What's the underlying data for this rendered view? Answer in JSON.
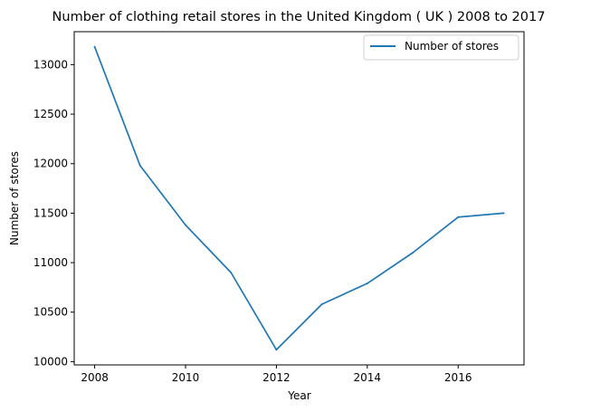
{
  "chart_data": {
    "type": "line",
    "title": "Number of clothing retail stores in the United Kingdom ( UK ) 2008 to 2017",
    "xlabel": "Year",
    "ylabel": "Number of stores",
    "x": [
      2008,
      2009,
      2010,
      2011,
      2012,
      2013,
      2014,
      2015,
      2016,
      2017
    ],
    "series": [
      {
        "name": "Number of stores",
        "color": "#1f77b4",
        "values": [
          13180,
          11980,
          11380,
          10900,
          10120,
          10580,
          10790,
          11100,
          11460,
          11500
        ]
      }
    ],
    "xlim": [
      2007.55,
      2017.45
    ],
    "ylim": [
      9967,
      13333
    ],
    "xticks": [
      2008,
      2010,
      2012,
      2014,
      2016
    ],
    "yticks": [
      10000,
      10500,
      11000,
      11500,
      12000,
      12500,
      13000
    ],
    "grid": false,
    "legend_position": "top-right"
  }
}
